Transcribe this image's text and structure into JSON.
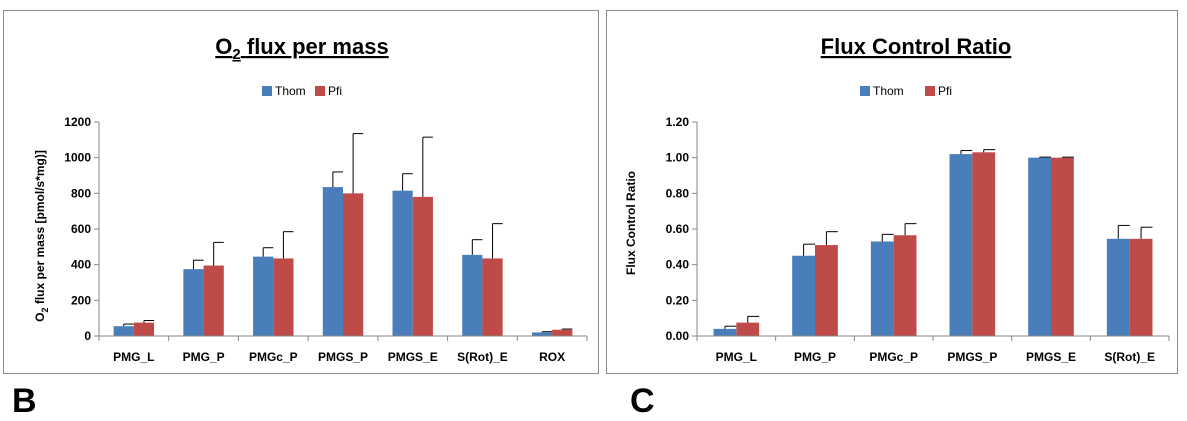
{
  "panel_labels": {
    "b": "B",
    "c": "C"
  },
  "chart_data": [
    {
      "type": "bar",
      "title": "O2 flux per mass",
      "title_parts": {
        "main1": "O",
        "sub": "2",
        "main2": " flux per mass"
      },
      "xlabel": "",
      "ylabel": "O2 flux per mass [pmol/s*mg)]",
      "ylabel_parts": {
        "main1": "O",
        "sub": "2",
        "main2": " flux per mass [pmol/s*mg)]"
      },
      "categories": [
        "PMG_L",
        "PMG_P",
        "PMGc_P",
        "PMGS_P",
        "PMGS_E",
        "S(Rot)_E",
        "ROX"
      ],
      "series": [
        {
          "name": "Thom",
          "color": "#4a7ebb",
          "values": [
            55,
            375,
            445,
            835,
            815,
            455,
            20
          ],
          "errors": [
            12,
            50,
            50,
            85,
            95,
            85,
            4
          ]
        },
        {
          "name": "Pfi",
          "color": "#be4b48",
          "values": [
            75,
            395,
            435,
            800,
            780,
            435,
            35
          ],
          "errors": [
            12,
            130,
            150,
            335,
            335,
            195,
            4
          ]
        }
      ],
      "ylim": [
        0,
        1200
      ],
      "yticks": [
        "0",
        "200",
        "400",
        "600",
        "800",
        "1000",
        "1200"
      ],
      "grid": false,
      "legend_position": "top-center"
    },
    {
      "type": "bar",
      "title": "Flux Control Ratio",
      "xlabel": "",
      "ylabel": "Flux Control Ratio",
      "categories": [
        "PMG_L",
        "PMG_P",
        "PMGc_P",
        "PMGS_P",
        "PMGS_E",
        "S(Rot)_E"
      ],
      "series": [
        {
          "name": "Thom",
          "color": "#4a7ebb",
          "values": [
            0.04,
            0.45,
            0.53,
            1.02,
            1.0,
            0.545
          ],
          "errors": [
            0.015,
            0.065,
            0.04,
            0.02,
            0.003,
            0.075
          ]
        },
        {
          "name": "Pfi",
          "color": "#be4b48",
          "values": [
            0.075,
            0.51,
            0.565,
            1.03,
            1.0,
            0.545
          ],
          "errors": [
            0.035,
            0.075,
            0.065,
            0.015,
            0.003,
            0.065
          ]
        }
      ],
      "ylim": [
        0,
        1.2
      ],
      "yticks": [
        "0.00",
        "0.20",
        "0.40",
        "0.60",
        "0.80",
        "1.00",
        "1.20"
      ],
      "grid": false,
      "legend_position": "top-center"
    }
  ]
}
